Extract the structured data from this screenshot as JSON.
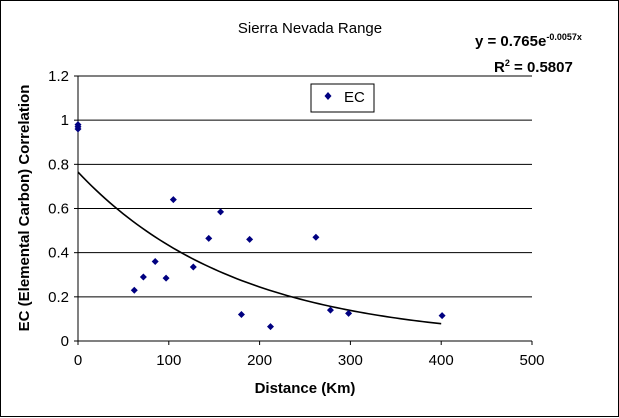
{
  "chart_data": {
    "type": "scatter",
    "title": "Sierra Nevada Range",
    "xlabel": "Distance (Km)",
    "ylabel": "EC (Elemental Carbon) Correlation",
    "xlim": [
      0,
      500
    ],
    "ylim": [
      0,
      1.2
    ],
    "x_ticks": [
      "0",
      "100",
      "200",
      "300",
      "400",
      "500"
    ],
    "y_ticks": [
      "0",
      "0.2",
      "0.4",
      "0.6",
      "0.8",
      "1",
      "1.2"
    ],
    "grid": "horizontal",
    "legend": "top-center",
    "series": [
      {
        "name": "EC",
        "color": "#000080",
        "marker": "diamond",
        "points": [
          {
            "x": 0,
            "y": 0.98
          },
          {
            "x": 0,
            "y": 0.96
          },
          {
            "x": 0,
            "y": 0.97
          },
          {
            "x": 62,
            "y": 0.23
          },
          {
            "x": 72,
            "y": 0.29
          },
          {
            "x": 85,
            "y": 0.36
          },
          {
            "x": 97,
            "y": 0.285
          },
          {
            "x": 105,
            "y": 0.64
          },
          {
            "x": 127,
            "y": 0.335
          },
          {
            "x": 144,
            "y": 0.465
          },
          {
            "x": 157,
            "y": 0.585
          },
          {
            "x": 180,
            "y": 0.12
          },
          {
            "x": 189,
            "y": 0.46
          },
          {
            "x": 212,
            "y": 0.065
          },
          {
            "x": 262,
            "y": 0.47
          },
          {
            "x": 278,
            "y": 0.14
          },
          {
            "x": 298,
            "y": 0.125
          },
          {
            "x": 401,
            "y": 0.115
          }
        ]
      }
    ],
    "trendline": {
      "type": "exponential",
      "a": 0.765,
      "b": -0.0057,
      "x_range": [
        0,
        400
      ],
      "color": "#000000"
    },
    "equation": {
      "prefix": "y = 0.765e",
      "exponent": "-0.0057x",
      "r2_label": "R",
      "r2_sup": "2",
      "r2_value": " = 0.5807"
    }
  }
}
